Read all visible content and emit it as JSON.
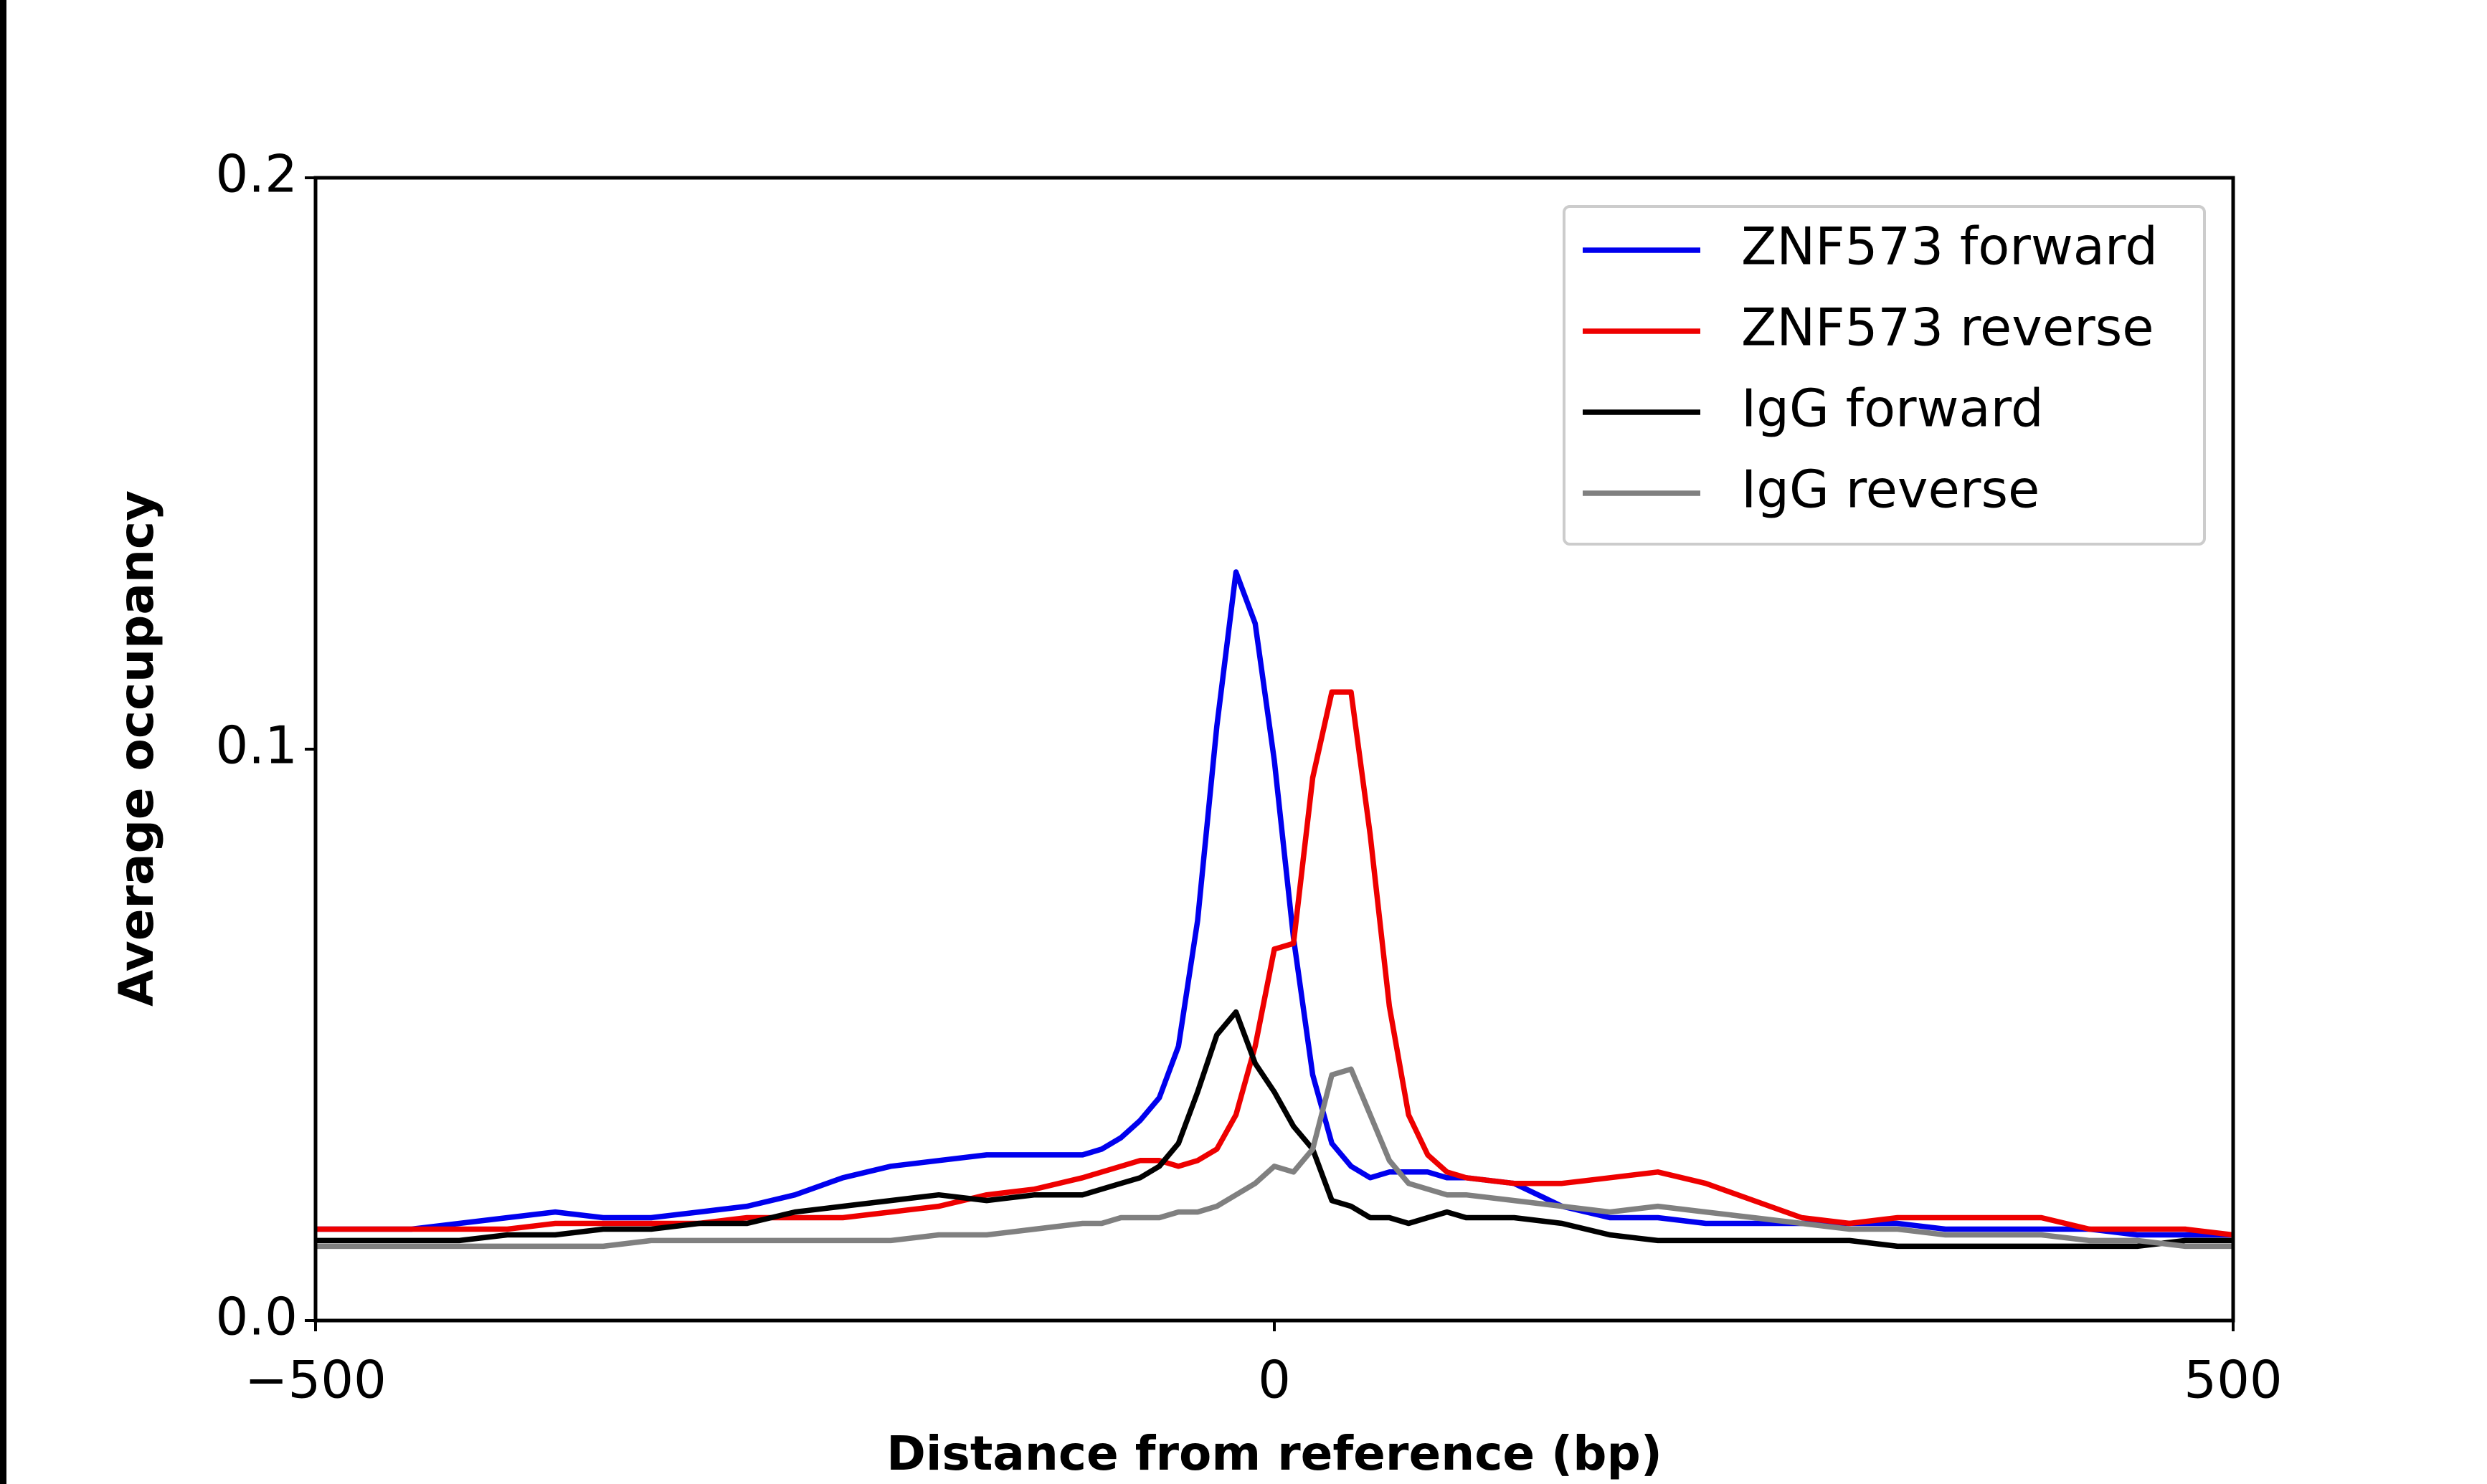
{
  "chart_data": {
    "type": "line",
    "xlabel": "Distance from reference (bp)",
    "ylabel": "Average occupancy",
    "xlim": [
      -500,
      500
    ],
    "ylim": [
      0,
      0.2
    ],
    "xticks": [
      {
        "value": -500,
        "label": "−500"
      },
      0,
      500
    ],
    "yticks": [
      {
        "value": 0,
        "label": "0.0"
      },
      0.1,
      0.2
    ],
    "grid": false,
    "legend": "upper right",
    "x": [
      -500,
      -475,
      -450,
      -425,
      -400,
      -375,
      -350,
      -325,
      -300,
      -275,
      -250,
      -225,
      -200,
      -175,
      -150,
      -125,
      -100,
      -90,
      -80,
      -70,
      -60,
      -50,
      -40,
      -30,
      -20,
      -10,
      0,
      10,
      20,
      30,
      40,
      50,
      60,
      70,
      80,
      90,
      100,
      125,
      150,
      175,
      200,
      225,
      250,
      275,
      300,
      325,
      350,
      375,
      400,
      425,
      450,
      475,
      500
    ],
    "series": [
      {
        "name": "ZNF573 forward",
        "color": "#0000ee",
        "values": [
          0.016,
          0.016,
          0.016,
          0.017,
          0.018,
          0.019,
          0.018,
          0.018,
          0.019,
          0.02,
          0.022,
          0.025,
          0.027,
          0.028,
          0.029,
          0.029,
          0.029,
          0.03,
          0.032,
          0.035,
          0.039,
          0.048,
          0.07,
          0.104,
          0.131,
          0.122,
          0.098,
          0.067,
          0.043,
          0.031,
          0.027,
          0.025,
          0.026,
          0.026,
          0.026,
          0.025,
          0.025,
          0.024,
          0.02,
          0.018,
          0.018,
          0.017,
          0.017,
          0.017,
          0.017,
          0.017,
          0.016,
          0.016,
          0.016,
          0.016,
          0.015,
          0.015,
          0.015
        ]
      },
      {
        "name": "ZNF573 reverse",
        "color": "#ee0000",
        "values": [
          0.016,
          0.016,
          0.016,
          0.016,
          0.016,
          0.017,
          0.017,
          0.017,
          0.017,
          0.018,
          0.018,
          0.018,
          0.019,
          0.02,
          0.022,
          0.023,
          0.025,
          0.026,
          0.027,
          0.028,
          0.028,
          0.027,
          0.028,
          0.03,
          0.036,
          0.048,
          0.065,
          0.066,
          0.095,
          0.11,
          0.11,
          0.085,
          0.055,
          0.036,
          0.029,
          0.026,
          0.025,
          0.024,
          0.024,
          0.025,
          0.026,
          0.024,
          0.021,
          0.018,
          0.017,
          0.018,
          0.018,
          0.018,
          0.018,
          0.016,
          0.016,
          0.016,
          0.015
        ]
      },
      {
        "name": "IgG forward",
        "color": "#000000",
        "values": [
          0.014,
          0.014,
          0.014,
          0.014,
          0.015,
          0.015,
          0.016,
          0.016,
          0.017,
          0.017,
          0.019,
          0.02,
          0.021,
          0.022,
          0.021,
          0.022,
          0.022,
          0.023,
          0.024,
          0.025,
          0.027,
          0.031,
          0.04,
          0.05,
          0.054,
          0.045,
          0.04,
          0.034,
          0.03,
          0.021,
          0.02,
          0.018,
          0.018,
          0.017,
          0.018,
          0.019,
          0.018,
          0.018,
          0.017,
          0.015,
          0.014,
          0.014,
          0.014,
          0.014,
          0.014,
          0.013,
          0.013,
          0.013,
          0.013,
          0.013,
          0.013,
          0.014,
          0.014
        ]
      },
      {
        "name": "IgG reverse",
        "color": "#808080",
        "values": [
          0.013,
          0.013,
          0.013,
          0.013,
          0.013,
          0.013,
          0.013,
          0.014,
          0.014,
          0.014,
          0.014,
          0.014,
          0.014,
          0.015,
          0.015,
          0.016,
          0.017,
          0.017,
          0.018,
          0.018,
          0.018,
          0.019,
          0.019,
          0.02,
          0.022,
          0.024,
          0.027,
          0.026,
          0.03,
          0.043,
          0.044,
          0.036,
          0.028,
          0.024,
          0.023,
          0.022,
          0.022,
          0.021,
          0.02,
          0.019,
          0.02,
          0.019,
          0.018,
          0.017,
          0.016,
          0.016,
          0.015,
          0.015,
          0.015,
          0.014,
          0.014,
          0.013,
          0.013
        ]
      }
    ]
  }
}
